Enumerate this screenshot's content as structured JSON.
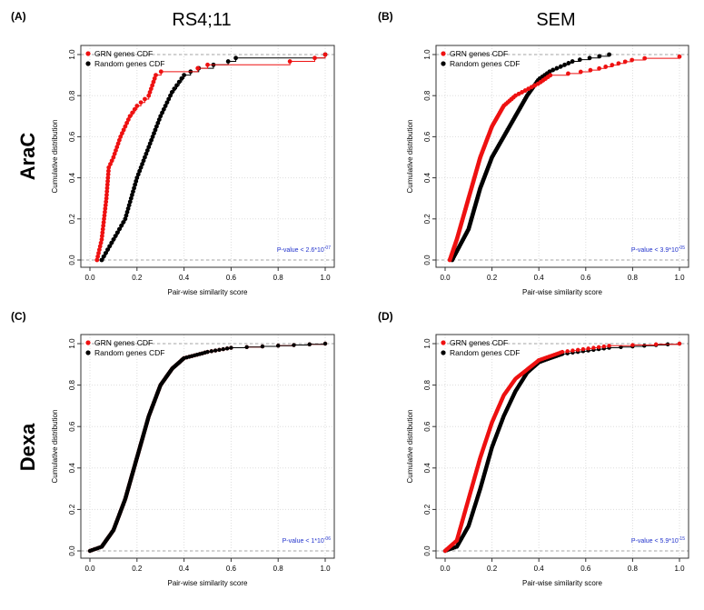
{
  "figure": {
    "column_titles": [
      "RS4;11",
      "SEM"
    ],
    "row_labels": [
      "AraC",
      "Dexa"
    ]
  },
  "colors": {
    "grn": "#ee1111",
    "random": "#000000",
    "pvalue": "#2233cc"
  },
  "chart_data": [
    {
      "type": "line",
      "panel": "(A)",
      "xlabel": "Pair-wise similarity score",
      "ylabel": "Cumulative distribution",
      "xlim": [
        0,
        1
      ],
      "ylim": [
        0,
        1
      ],
      "grid": true,
      "legend": "top-left",
      "xticks": [
        "0.0",
        "0.2",
        "0.4",
        "0.6",
        "0.8",
        "1.0"
      ],
      "yticks": [
        "0.0",
        "0.2",
        "0.4",
        "0.6",
        "0.8",
        "1.0"
      ],
      "annotation": "P-value < 2.6*10^-07",
      "n_points": 60,
      "series": [
        {
          "name": "GRN genes CDF",
          "points": [
            [
              0.03,
              0
            ],
            [
              0.05,
              0.1
            ],
            [
              0.07,
              0.3
            ],
            [
              0.08,
              0.45
            ],
            [
              0.1,
              0.5
            ],
            [
              0.13,
              0.6
            ],
            [
              0.17,
              0.7
            ],
            [
              0.2,
              0.75
            ],
            [
              0.25,
              0.8
            ],
            [
              0.28,
              0.9
            ],
            [
              0.32,
              0.93
            ],
            [
              0.45,
              0.93
            ],
            [
              0.5,
              0.95
            ],
            [
              0.92,
              0.97
            ],
            [
              1.0,
              1.0
            ]
          ]
        },
        {
          "name": "Random genes CDF",
          "points": [
            [
              0.05,
              0
            ],
            [
              0.1,
              0.1
            ],
            [
              0.15,
              0.2
            ],
            [
              0.2,
              0.4
            ],
            [
              0.25,
              0.55
            ],
            [
              0.3,
              0.7
            ],
            [
              0.35,
              0.82
            ],
            [
              0.4,
              0.9
            ],
            [
              0.45,
              0.93
            ],
            [
              0.6,
              0.97
            ],
            [
              0.63,
              0.99
            ],
            [
              1.0,
              1.0
            ]
          ]
        }
      ]
    },
    {
      "type": "line",
      "panel": "(B)",
      "xlabel": "Pair-wise similarity score",
      "ylabel": "Cumulative distribution",
      "xlim": [
        0,
        1
      ],
      "ylim": [
        0,
        1
      ],
      "grid": true,
      "legend": "top-left",
      "xticks": [
        "0.0",
        "0.2",
        "0.4",
        "0.6",
        "0.8",
        "1.0"
      ],
      "yticks": [
        "0.0",
        "0.2",
        "0.4",
        "0.6",
        "0.8",
        "1.0"
      ],
      "annotation": "P-value < 3.9*10^-05",
      "n_points": 120,
      "series": [
        {
          "name": "GRN genes CDF",
          "points": [
            [
              0.02,
              0
            ],
            [
              0.05,
              0.1
            ],
            [
              0.1,
              0.3
            ],
            [
              0.15,
              0.5
            ],
            [
              0.2,
              0.65
            ],
            [
              0.25,
              0.75
            ],
            [
              0.3,
              0.8
            ],
            [
              0.4,
              0.86
            ],
            [
              0.45,
              0.9
            ],
            [
              0.55,
              0.91
            ],
            [
              0.65,
              0.93
            ],
            [
              0.75,
              0.96
            ],
            [
              0.82,
              0.98
            ],
            [
              1.0,
              0.99
            ]
          ]
        },
        {
          "name": "Random genes CDF",
          "points": [
            [
              0.03,
              0
            ],
            [
              0.1,
              0.15
            ],
            [
              0.15,
              0.35
            ],
            [
              0.2,
              0.5
            ],
            [
              0.25,
              0.6
            ],
            [
              0.3,
              0.7
            ],
            [
              0.35,
              0.8
            ],
            [
              0.4,
              0.88
            ],
            [
              0.45,
              0.92
            ],
            [
              0.55,
              0.97
            ],
            [
              0.7,
              1.0
            ]
          ]
        }
      ]
    },
    {
      "type": "line",
      "panel": "(C)",
      "xlabel": "Pair-wise similarity score",
      "ylabel": "Cumulative distribution",
      "xlim": [
        0,
        1
      ],
      "ylim": [
        0,
        1
      ],
      "grid": true,
      "legend": "top-left",
      "xticks": [
        "0.0",
        "0.2",
        "0.4",
        "0.6",
        "0.8",
        "1.0"
      ],
      "yticks": [
        "0.0",
        "0.2",
        "0.4",
        "0.6",
        "0.8",
        "1.0"
      ],
      "annotation": "P-value < 1*10^-06",
      "n_points": 300,
      "series": [
        {
          "name": "GRN genes CDF",
          "points": [
            [
              0,
              0
            ],
            [
              0.05,
              0.02
            ],
            [
              0.1,
              0.1
            ],
            [
              0.15,
              0.25
            ],
            [
              0.2,
              0.45
            ],
            [
              0.25,
              0.65
            ],
            [
              0.3,
              0.8
            ],
            [
              0.35,
              0.88
            ],
            [
              0.4,
              0.93
            ],
            [
              0.5,
              0.96
            ],
            [
              0.6,
              0.98
            ],
            [
              0.8,
              0.99
            ],
            [
              1,
              1
            ]
          ]
        },
        {
          "name": "Random genes CDF",
          "points": [
            [
              0,
              0
            ],
            [
              0.05,
              0.02
            ],
            [
              0.1,
              0.1
            ],
            [
              0.15,
              0.25
            ],
            [
              0.2,
              0.45
            ],
            [
              0.25,
              0.65
            ],
            [
              0.3,
              0.8
            ],
            [
              0.35,
              0.88
            ],
            [
              0.4,
              0.93
            ],
            [
              0.5,
              0.96
            ],
            [
              0.6,
              0.98
            ],
            [
              0.8,
              0.99
            ],
            [
              1,
              1
            ]
          ]
        }
      ]
    },
    {
      "type": "line",
      "panel": "(D)",
      "xlabel": "Pair-wise similarity score",
      "ylabel": "Cumulative distribution",
      "xlim": [
        0,
        1
      ],
      "ylim": [
        0,
        1
      ],
      "grid": true,
      "legend": "top-left",
      "xticks": [
        "0.0",
        "0.2",
        "0.4",
        "0.6",
        "0.8",
        "1.0"
      ],
      "yticks": [
        "0.0",
        "0.2",
        "0.4",
        "0.6",
        "0.8",
        "1.0"
      ],
      "annotation": "P-value < 5.9*10^-15",
      "n_points": 300,
      "series": [
        {
          "name": "GRN genes CDF",
          "points": [
            [
              0,
              0
            ],
            [
              0.05,
              0.05
            ],
            [
              0.1,
              0.25
            ],
            [
              0.15,
              0.45
            ],
            [
              0.2,
              0.62
            ],
            [
              0.25,
              0.75
            ],
            [
              0.3,
              0.83
            ],
            [
              0.4,
              0.92
            ],
            [
              0.5,
              0.96
            ],
            [
              0.7,
              0.99
            ],
            [
              1,
              1
            ]
          ]
        },
        {
          "name": "Random genes CDF",
          "points": [
            [
              0,
              0
            ],
            [
              0.05,
              0.02
            ],
            [
              0.1,
              0.12
            ],
            [
              0.15,
              0.3
            ],
            [
              0.2,
              0.5
            ],
            [
              0.25,
              0.65
            ],
            [
              0.3,
              0.77
            ],
            [
              0.35,
              0.86
            ],
            [
              0.4,
              0.91
            ],
            [
              0.5,
              0.95
            ],
            [
              0.7,
              0.98
            ],
            [
              1,
              1
            ]
          ]
        }
      ]
    }
  ]
}
